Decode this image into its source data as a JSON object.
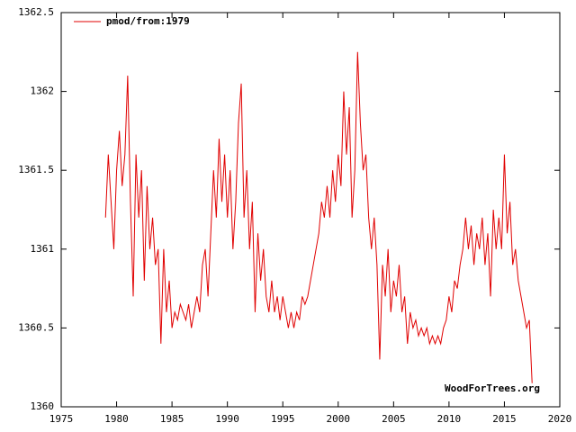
{
  "chart_data": {
    "type": "line",
    "annotation": "WoodForTrees.org",
    "legend": "top-left",
    "xlim": [
      1975,
      2020
    ],
    "xticks": [
      1975,
      1980,
      1985,
      1990,
      1995,
      2000,
      2005,
      2010,
      2015,
      2020
    ],
    "ylim": [
      1360,
      1362.5
    ],
    "yticks": [
      1360,
      1360.5,
      1361,
      1361.5,
      1362,
      1362.5
    ],
    "x": [
      1979,
      1979.25,
      1979.5,
      1979.75,
      1980,
      1980.25,
      1980.5,
      1980.75,
      1981,
      1981.25,
      1981.5,
      1981.75,
      1982,
      1982.25,
      1982.5,
      1982.75,
      1983,
      1983.25,
      1983.5,
      1983.75,
      1984,
      1984.25,
      1984.5,
      1984.75,
      1985,
      1985.25,
      1985.5,
      1985.75,
      1986,
      1986.25,
      1986.5,
      1986.75,
      1987,
      1987.25,
      1987.5,
      1987.75,
      1988,
      1988.25,
      1988.5,
      1988.75,
      1989,
      1989.25,
      1989.5,
      1989.75,
      1990,
      1990.25,
      1990.5,
      1990.75,
      1991,
      1991.25,
      1991.5,
      1991.75,
      1992,
      1992.25,
      1992.5,
      1992.75,
      1993,
      1993.25,
      1993.5,
      1993.75,
      1994,
      1994.25,
      1994.5,
      1994.75,
      1995,
      1995.25,
      1995.5,
      1995.75,
      1996,
      1996.25,
      1996.5,
      1996.75,
      1997,
      1997.25,
      1997.5,
      1997.75,
      1998,
      1998.25,
      1998.5,
      1998.75,
      1999,
      1999.25,
      1999.5,
      1999.75,
      2000,
      2000.25,
      2000.5,
      2000.75,
      2001,
      2001.25,
      2001.5,
      2001.75,
      2002,
      2002.25,
      2002.5,
      2002.75,
      2003,
      2003.25,
      2003.5,
      2003.75,
      2004,
      2004.25,
      2004.5,
      2004.75,
      2005,
      2005.25,
      2005.5,
      2005.75,
      2006,
      2006.25,
      2006.5,
      2006.75,
      2007,
      2007.25,
      2007.5,
      2007.75,
      2008,
      2008.25,
      2008.5,
      2008.75,
      2009,
      2009.25,
      2009.5,
      2009.75,
      2010,
      2010.25,
      2010.5,
      2010.75,
      2011,
      2011.25,
      2011.5,
      2011.75,
      2012,
      2012.25,
      2012.5,
      2012.75,
      2013,
      2013.25,
      2013.5,
      2013.75,
      2014,
      2014.25,
      2014.5,
      2014.75,
      2015,
      2015.25,
      2015.5,
      2015.75,
      2016,
      2016.25,
      2016.5,
      2016.75,
      2017,
      2017.25,
      2017.5
    ],
    "series": [
      {
        "name": "pmod/from:1979",
        "color": "#e00000",
        "values": [
          1361.2,
          1361.6,
          1361.3,
          1361.0,
          1361.5,
          1361.75,
          1361.4,
          1361.6,
          1362.1,
          1361.3,
          1360.7,
          1361.6,
          1361.2,
          1361.5,
          1360.8,
          1361.4,
          1361.0,
          1361.2,
          1360.9,
          1361.0,
          1360.4,
          1361.0,
          1360.6,
          1360.8,
          1360.5,
          1360.6,
          1360.55,
          1360.65,
          1360.6,
          1360.55,
          1360.65,
          1360.5,
          1360.6,
          1360.7,
          1360.6,
          1360.9,
          1361.0,
          1360.7,
          1361.1,
          1361.5,
          1361.2,
          1361.7,
          1361.3,
          1361.6,
          1361.2,
          1361.5,
          1361.0,
          1361.3,
          1361.8,
          1362.05,
          1361.2,
          1361.5,
          1361.0,
          1361.3,
          1360.6,
          1361.1,
          1360.8,
          1361.0,
          1360.7,
          1360.6,
          1360.8,
          1360.6,
          1360.7,
          1360.55,
          1360.7,
          1360.6,
          1360.5,
          1360.6,
          1360.5,
          1360.6,
          1360.55,
          1360.7,
          1360.65,
          1360.7,
          1360.8,
          1360.9,
          1361.0,
          1361.1,
          1361.3,
          1361.2,
          1361.4,
          1361.2,
          1361.5,
          1361.3,
          1361.6,
          1361.4,
          1362.0,
          1361.6,
          1361.9,
          1361.2,
          1361.5,
          1362.25,
          1361.8,
          1361.5,
          1361.6,
          1361.2,
          1361.0,
          1361.2,
          1360.9,
          1360.3,
          1360.9,
          1360.7,
          1361.0,
          1360.6,
          1360.8,
          1360.7,
          1360.9,
          1360.6,
          1360.7,
          1360.4,
          1360.6,
          1360.5,
          1360.55,
          1360.45,
          1360.5,
          1360.45,
          1360.5,
          1360.4,
          1360.45,
          1360.4,
          1360.45,
          1360.4,
          1360.5,
          1360.55,
          1360.7,
          1360.6,
          1360.8,
          1360.75,
          1360.9,
          1361.0,
          1361.2,
          1361.0,
          1361.15,
          1360.9,
          1361.1,
          1361.0,
          1361.2,
          1360.9,
          1361.1,
          1360.7,
          1361.25,
          1361.0,
          1361.2,
          1361.0,
          1361.6,
          1361.1,
          1361.3,
          1360.9,
          1361.0,
          1360.8,
          1360.7,
          1360.6,
          1360.5,
          1360.55,
          1360.15
        ]
      }
    ]
  }
}
